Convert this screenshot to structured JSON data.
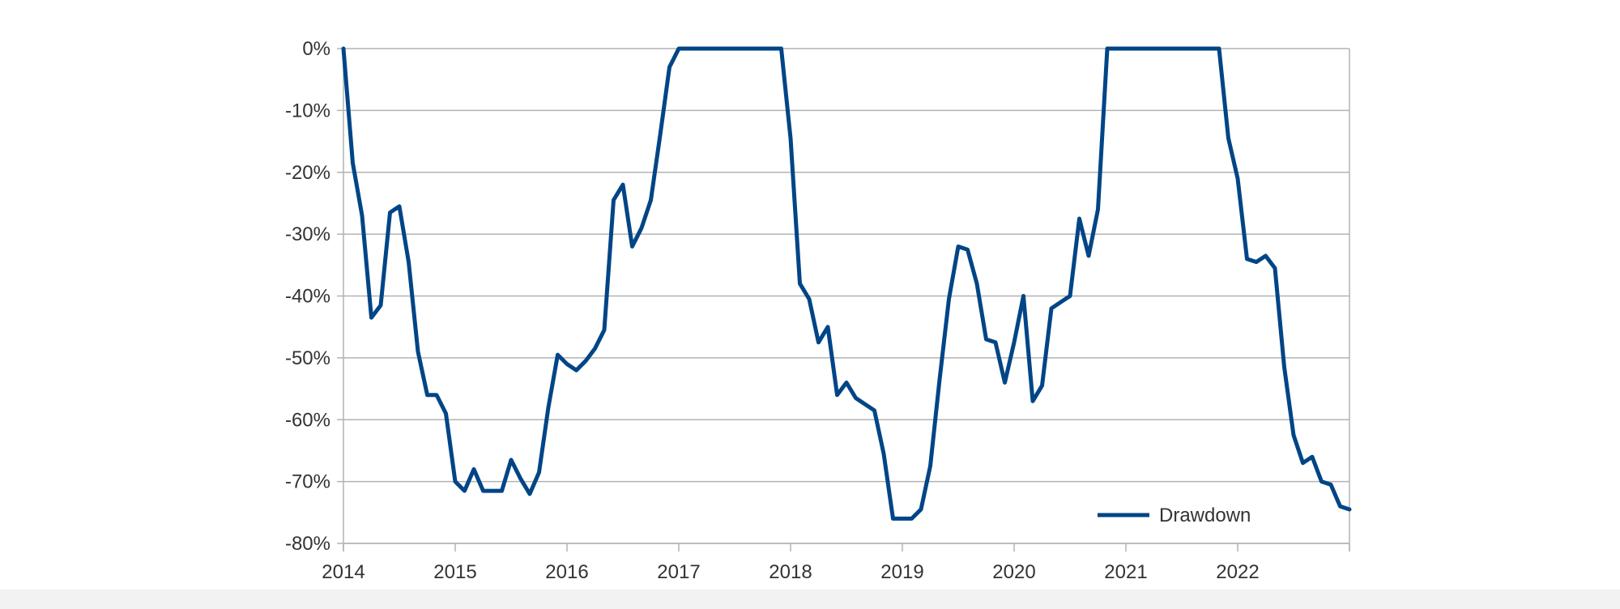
{
  "chart_data": {
    "type": "line",
    "title": "",
    "xlabel": "",
    "ylabel": "",
    "x_tick_labels": [
      "2014",
      "2015",
      "2016",
      "2017",
      "2018",
      "2019",
      "2020",
      "2021",
      "2022"
    ],
    "y_tick_labels": [
      "0%",
      "-10%",
      "-20%",
      "-30%",
      "-40%",
      "-50%",
      "-60%",
      "-70%",
      "-80%"
    ],
    "y_tick_values": [
      0,
      -10,
      -20,
      -30,
      -40,
      -50,
      -60,
      -70,
      -80
    ],
    "xlim": [
      "2014-01",
      "2023-01"
    ],
    "ylim": [
      -80,
      0
    ],
    "grid": "horizontal",
    "legend_position": "bottom-right",
    "series": [
      {
        "name": "Drawdown",
        "color": "#004586",
        "points": [
          [
            "2014-01",
            0
          ],
          [
            "2014-02",
            -18.5
          ],
          [
            "2014-03",
            -27
          ],
          [
            "2014-04",
            -43.5
          ],
          [
            "2014-05",
            -41.5
          ],
          [
            "2014-06",
            -26.5
          ],
          [
            "2014-07",
            -25.5
          ],
          [
            "2014-08",
            -34.5
          ],
          [
            "2014-09",
            -49
          ],
          [
            "2014-10",
            -56
          ],
          [
            "2014-11",
            -56
          ],
          [
            "2014-12",
            -59
          ],
          [
            "2015-01",
            -70
          ],
          [
            "2015-02",
            -71.5
          ],
          [
            "2015-03",
            -68
          ],
          [
            "2015-04",
            -71.5
          ],
          [
            "2015-05",
            -71.5
          ],
          [
            "2015-06",
            -71.5
          ],
          [
            "2015-07",
            -66.5
          ],
          [
            "2015-08",
            -69.5
          ],
          [
            "2015-09",
            -72
          ],
          [
            "2015-10",
            -68.5
          ],
          [
            "2015-11",
            -58
          ],
          [
            "2015-12",
            -49.5
          ],
          [
            "2016-01",
            -51
          ],
          [
            "2016-02",
            -52
          ],
          [
            "2016-03",
            -50.5
          ],
          [
            "2016-04",
            -48.5
          ],
          [
            "2016-05",
            -45.5
          ],
          [
            "2016-06",
            -24.5
          ],
          [
            "2016-07",
            -22
          ],
          [
            "2016-08",
            -32
          ],
          [
            "2016-09",
            -29
          ],
          [
            "2016-10",
            -24.5
          ],
          [
            "2016-11",
            -14
          ],
          [
            "2016-12",
            -3
          ],
          [
            "2017-01",
            0
          ],
          [
            "2017-02",
            0
          ],
          [
            "2017-03",
            0
          ],
          [
            "2017-04",
            0
          ],
          [
            "2017-05",
            0
          ],
          [
            "2017-06",
            0
          ],
          [
            "2017-07",
            0
          ],
          [
            "2017-08",
            0
          ],
          [
            "2017-09",
            0
          ],
          [
            "2017-10",
            0
          ],
          [
            "2017-11",
            0
          ],
          [
            "2017-12",
            0
          ],
          [
            "2018-01",
            -14.5
          ],
          [
            "2018-02",
            -38
          ],
          [
            "2018-03",
            -40.5
          ],
          [
            "2018-04",
            -47.5
          ],
          [
            "2018-05",
            -45
          ],
          [
            "2018-06",
            -56
          ],
          [
            "2018-07",
            -54
          ],
          [
            "2018-08",
            -56.5
          ],
          [
            "2018-09",
            -57.5
          ],
          [
            "2018-10",
            -58.5
          ],
          [
            "2018-11",
            -65.5
          ],
          [
            "2018-12",
            -76
          ],
          [
            "2019-01",
            -76
          ],
          [
            "2019-02",
            -76
          ],
          [
            "2019-03",
            -74.5
          ],
          [
            "2019-04",
            -67.5
          ],
          [
            "2019-05",
            -53.5
          ],
          [
            "2019-06",
            -40.5
          ],
          [
            "2019-07",
            -32
          ],
          [
            "2019-08",
            -32.5
          ],
          [
            "2019-09",
            -38
          ],
          [
            "2019-10",
            -47
          ],
          [
            "2019-11",
            -47.5
          ],
          [
            "2019-12",
            -54
          ],
          [
            "2020-01",
            -47.5
          ],
          [
            "2020-02",
            -40
          ],
          [
            "2020-03",
            -57
          ],
          [
            "2020-04",
            -54.5
          ],
          [
            "2020-05",
            -42
          ],
          [
            "2020-06",
            -41
          ],
          [
            "2020-07",
            -40
          ],
          [
            "2020-08",
            -27.5
          ],
          [
            "2020-09",
            -33.5
          ],
          [
            "2020-10",
            -26
          ],
          [
            "2020-11",
            0
          ],
          [
            "2020-12",
            0
          ],
          [
            "2021-01",
            0
          ],
          [
            "2021-02",
            0
          ],
          [
            "2021-03",
            0
          ],
          [
            "2021-04",
            0
          ],
          [
            "2021-05",
            0
          ],
          [
            "2021-06",
            0
          ],
          [
            "2021-07",
            0
          ],
          [
            "2021-08",
            0
          ],
          [
            "2021-09",
            0
          ],
          [
            "2021-10",
            0
          ],
          [
            "2021-11",
            0
          ],
          [
            "2021-12",
            -14.5
          ],
          [
            "2022-01",
            -21
          ],
          [
            "2022-02",
            -34
          ],
          [
            "2022-03",
            -34.5
          ],
          [
            "2022-04",
            -33.5
          ],
          [
            "2022-05",
            -35.5
          ],
          [
            "2022-06",
            -51.5
          ],
          [
            "2022-07",
            -62.5
          ],
          [
            "2022-08",
            -67
          ],
          [
            "2022-09",
            -66
          ],
          [
            "2022-10",
            -70
          ],
          [
            "2022-11",
            -70.5
          ],
          [
            "2022-12",
            -74
          ],
          [
            "2023-01",
            -74.5
          ]
        ]
      }
    ]
  }
}
